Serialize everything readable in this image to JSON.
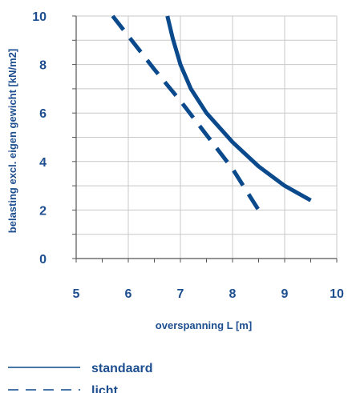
{
  "chart_data": {
    "type": "line",
    "xlabel": "overspanning L [m]",
    "ylabel": "belasting excl. eigen gewicht [kN/m2]",
    "xlim": [
      5,
      10
    ],
    "ylim": [
      0,
      10
    ],
    "xticks": [
      "5",
      "6",
      "7",
      "8",
      "9",
      "10"
    ],
    "yticks": [
      "0",
      "2",
      "4",
      "6",
      "8",
      "10"
    ],
    "grid": true,
    "legend_position": "bottom",
    "series": [
      {
        "name": "standaard",
        "style": "solid",
        "color": "#0a4a8c",
        "x": [
          6.75,
          6.85,
          7.0,
          7.2,
          7.5,
          8.0,
          8.5,
          9.0,
          9.5
        ],
        "y": [
          10.0,
          9.1,
          8.0,
          7.0,
          6.0,
          4.8,
          3.8,
          3.0,
          2.4
        ]
      },
      {
        "name": "licht",
        "style": "dashed",
        "color": "#0a4a8c",
        "x": [
          5.7,
          6.5,
          7.0,
          7.5,
          8.0,
          8.5
        ],
        "y": [
          10.0,
          7.8,
          6.5,
          5.1,
          3.7,
          2.0
        ]
      }
    ]
  },
  "colors": {
    "line": "#0a4a8c",
    "text": "#1d4e8f",
    "grid": "#c8c8c8",
    "axis": "#555555"
  }
}
